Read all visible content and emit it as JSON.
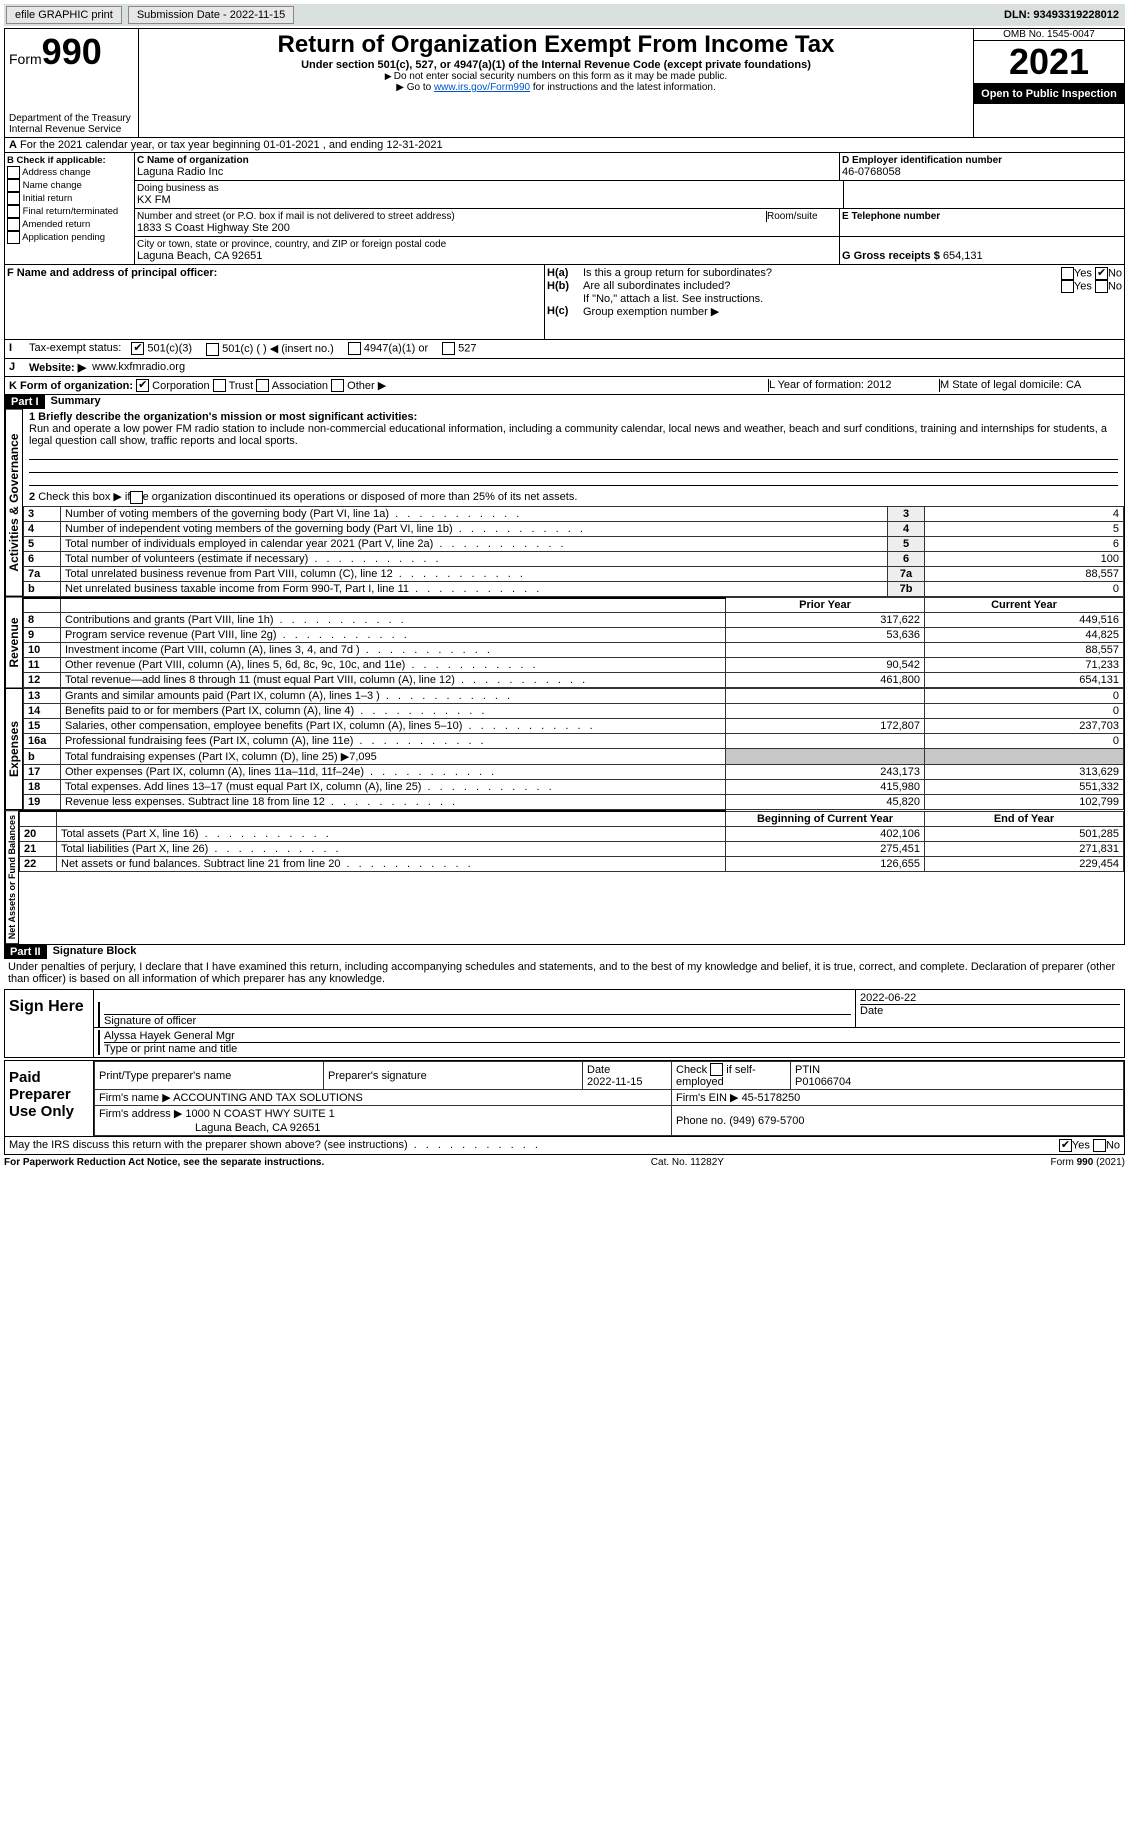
{
  "topbar": {
    "efile": "efile GRAPHIC print",
    "submission_label": "Submission Date - 2022-11-15",
    "dln": "DLN: 93493319228012"
  },
  "header": {
    "form_word": "Form",
    "form_num": "990",
    "dept": "Department of the Treasury",
    "irs": "Internal Revenue Service",
    "title": "Return of Organization Exempt From Income Tax",
    "sub1": "Under section 501(c), 527, or 4947(a)(1) of the Internal Revenue Code (except private foundations)",
    "sub2": "Do not enter social security numbers on this form as it may be made public.",
    "sub3_pre": "Go to ",
    "sub3_link": "www.irs.gov/Form990",
    "sub3_post": " for instructions and the latest information.",
    "omb": "OMB No. 1545-0047",
    "year": "2021",
    "open": "Open to Public Inspection"
  },
  "A": {
    "line": "For the 2021 calendar year, or tax year beginning 01-01-2021    , and ending 12-31-2021"
  },
  "B": {
    "label": "B Check if applicable:",
    "items": [
      "Address change",
      "Name change",
      "Initial return",
      "Final return/terminated",
      "Amended return",
      "Application pending"
    ]
  },
  "C": {
    "label": "C Name of organization",
    "name": "Laguna Radio Inc",
    "dba_label": "Doing business as",
    "dba": "KX FM",
    "street_label": "Number and street (or P.O. box if mail is not delivered to street address)",
    "room_label": "Room/suite",
    "street": "1833 S Coast Highway Ste 200",
    "city_label": "City or town, state or province, country, and ZIP or foreign postal code",
    "city": "Laguna Beach, CA  92651"
  },
  "D": {
    "label": "D Employer identification number",
    "val": "46-0768058"
  },
  "E": {
    "label": "E Telephone number",
    "val": ""
  },
  "G": {
    "label": "G Gross receipts $",
    "val": "654,131"
  },
  "F": {
    "label": "F  Name and address of principal officer:"
  },
  "H": {
    "a": "Is this a group return for subordinates?",
    "b": "Are all subordinates included?",
    "b_note": "If \"No,\" attach a list. See instructions.",
    "c": "Group exemption number ▶",
    "yes": "Yes",
    "no": "No"
  },
  "I": {
    "label": "Tax-exempt status:",
    "opts": [
      "501(c)(3)",
      "501(c) (  ) ◀ (insert no.)",
      "4947(a)(1) or",
      "527"
    ]
  },
  "J": {
    "label": "Website: ▶",
    "val": "www.kxfmradio.org"
  },
  "K": {
    "label": "K Form of organization:",
    "opts": [
      "Corporation",
      "Trust",
      "Association",
      "Other ▶"
    ]
  },
  "L": {
    "label": "L Year of formation: 2012"
  },
  "M": {
    "label": "M State of legal domicile: CA"
  },
  "part1": {
    "hdr": "Part I",
    "title": "Summary",
    "q1_label": "1 Briefly describe the organization's mission or most significant activities:",
    "q1": "Run and operate a low power FM radio station to include non-commercial educational information, including a community calendar, local news and weather, beach and surf conditions, training and internships for students, a legal question call show, traffic reports and local sports.",
    "q2": "Check this box ▶      if the organization discontinued its operations or disposed of more than 25% of its net assets.",
    "rows_gov": [
      {
        "n": "3",
        "t": "Number of voting members of the governing body (Part VI, line 1a)",
        "box": "3",
        "v": "4"
      },
      {
        "n": "4",
        "t": "Number of independent voting members of the governing body (Part VI, line 1b)",
        "box": "4",
        "v": "5"
      },
      {
        "n": "5",
        "t": "Total number of individuals employed in calendar year 2021 (Part V, line 2a)",
        "box": "5",
        "v": "6"
      },
      {
        "n": "6",
        "t": "Total number of volunteers (estimate if necessary)",
        "box": "6",
        "v": "100"
      },
      {
        "n": "7a",
        "t": "Total unrelated business revenue from Part VIII, column (C), line 12",
        "box": "7a",
        "v": "88,557"
      },
      {
        "n": "b",
        "t": "Net unrelated business taxable income from Form 990-T, Part I, line 11",
        "box": "7b",
        "v": "0"
      }
    ],
    "col_prior": "Prior Year",
    "col_curr": "Current Year",
    "rows_rev": [
      {
        "n": "8",
        "t": "Contributions and grants (Part VIII, line 1h)",
        "p": "317,622",
        "c": "449,516"
      },
      {
        "n": "9",
        "t": "Program service revenue (Part VIII, line 2g)",
        "p": "53,636",
        "c": "44,825"
      },
      {
        "n": "10",
        "t": "Investment income (Part VIII, column (A), lines 3, 4, and 7d )",
        "p": "",
        "c": "88,557"
      },
      {
        "n": "11",
        "t": "Other revenue (Part VIII, column (A), lines 5, 6d, 8c, 9c, 10c, and 11e)",
        "p": "90,542",
        "c": "71,233"
      },
      {
        "n": "12",
        "t": "Total revenue—add lines 8 through 11 (must equal Part VIII, column (A), line 12)",
        "p": "461,800",
        "c": "654,131"
      }
    ],
    "rows_exp": [
      {
        "n": "13",
        "t": "Grants and similar amounts paid (Part IX, column (A), lines 1–3 )",
        "p": "",
        "c": "0"
      },
      {
        "n": "14",
        "t": "Benefits paid to or for members (Part IX, column (A), line 4)",
        "p": "",
        "c": "0"
      },
      {
        "n": "15",
        "t": "Salaries, other compensation, employee benefits (Part IX, column (A), lines 5–10)",
        "p": "172,807",
        "c": "237,703"
      },
      {
        "n": "16a",
        "t": "Professional fundraising fees (Part IX, column (A), line 11e)",
        "p": "",
        "c": "0"
      },
      {
        "n": "b",
        "t": "Total fundraising expenses (Part IX, column (D), line 25) ▶7,095",
        "p": "shade",
        "c": "shade"
      },
      {
        "n": "17",
        "t": "Other expenses (Part IX, column (A), lines 11a–11d, 11f–24e)",
        "p": "243,173",
        "c": "313,629"
      },
      {
        "n": "18",
        "t": "Total expenses. Add lines 13–17 (must equal Part IX, column (A), line 25)",
        "p": "415,980",
        "c": "551,332"
      },
      {
        "n": "19",
        "t": "Revenue less expenses. Subtract line 18 from line 12",
        "p": "45,820",
        "c": "102,799"
      }
    ],
    "col_begin": "Beginning of Current Year",
    "col_end": "End of Year",
    "rows_net": [
      {
        "n": "20",
        "t": "Total assets (Part X, line 16)",
        "p": "402,106",
        "c": "501,285"
      },
      {
        "n": "21",
        "t": "Total liabilities (Part X, line 26)",
        "p": "275,451",
        "c": "271,831"
      },
      {
        "n": "22",
        "t": "Net assets or fund balances. Subtract line 21 from line 20",
        "p": "126,655",
        "c": "229,454"
      }
    ],
    "vtabs": [
      "Activities & Governance",
      "Revenue",
      "Expenses",
      "Net Assets or Fund Balances"
    ]
  },
  "part2": {
    "hdr": "Part II",
    "title": "Signature Block",
    "decl": "Under penalties of perjury, I declare that I have examined this return, including accompanying schedules and statements, and to the best of my knowledge and belief, it is true, correct, and complete. Declaration of preparer (other than officer) is based on all information of which preparer has any knowledge."
  },
  "sign": {
    "here": "Sign Here",
    "sig_officer": "Signature of officer",
    "date": "Date",
    "date_val": "2022-06-22",
    "name": "Alyssa Hayek  General Mgr",
    "name_label": "Type or print name and title"
  },
  "paid": {
    "label": "Paid Preparer Use Only",
    "h1": "Print/Type preparer's name",
    "h2": "Preparer's signature",
    "h3": "Date",
    "h3v": "2022-11-15",
    "h4": "Check        if self-employed",
    "h5": "PTIN",
    "h5v": "P01066704",
    "firm_name_l": "Firm's name   ▶",
    "firm_name": "ACCOUNTING AND TAX SOLUTIONS",
    "firm_ein_l": "Firm's EIN ▶",
    "firm_ein": "45-5178250",
    "firm_addr_l": "Firm's address ▶",
    "firm_addr1": "1000 N COAST HWY SUITE 1",
    "firm_addr2": "Laguna Beach, CA  92651",
    "phone_l": "Phone no.",
    "phone": "(949) 679-5700"
  },
  "discuss": "May the IRS discuss this return with the preparer shown above? (see instructions)",
  "footer": {
    "l": "For Paperwork Reduction Act Notice, see the separate instructions.",
    "m": "Cat. No. 11282Y",
    "r": "Form 990 (2021)"
  }
}
